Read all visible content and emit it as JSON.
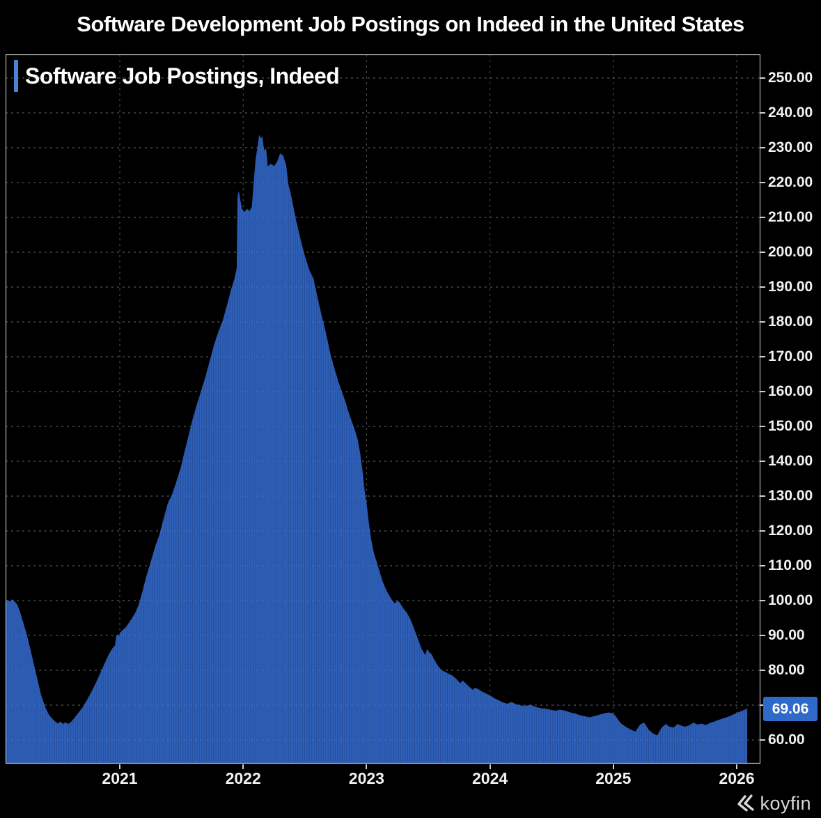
{
  "page": {
    "title": "Software Development Job Postings on Indeed in the United States"
  },
  "legend": {
    "label": "Software Job Postings, Indeed"
  },
  "badge": {
    "label": "69.06"
  },
  "brand": {
    "name": "koyfin"
  },
  "colors": {
    "background": "#000000",
    "bar_fill": "#2E5FB7",
    "bar_gap": "#234C99",
    "accent_bar": "#4D82DB",
    "badge_bg": "#2F6AC8",
    "grid": "#565656",
    "grid_overlay": "#FFFFFF",
    "frame": "#C7C7C7",
    "text": "#F2F2F2",
    "brand_gray": "#D8D8D8"
  },
  "chart_data": {
    "type": "area",
    "title": "Software Job Postings, Indeed",
    "xlabel": "",
    "ylabel": "",
    "legend_position": "top-left",
    "grid": true,
    "x_axis": {
      "range": [
        2020.06,
        2026.17
      ],
      "ticks": [
        2021,
        2022,
        2023,
        2024,
        2025,
        2026
      ],
      "tick_labels": [
        "2021",
        "2022",
        "2023",
        "2024",
        "2025",
        "2026"
      ]
    },
    "y_axis": {
      "range": [
        53,
        256.8
      ],
      "tick_step": 10,
      "gridline_values": [
        60,
        70,
        80,
        90,
        100,
        110,
        120,
        130,
        140,
        150,
        160,
        170,
        180,
        190,
        200,
        210,
        220,
        230,
        240,
        250
      ],
      "labels": [
        {
          "value": 250,
          "label": "250.00"
        },
        {
          "value": 240,
          "label": "240.00"
        },
        {
          "value": 230,
          "label": "230.00"
        },
        {
          "value": 220,
          "label": "220.00"
        },
        {
          "value": 210,
          "label": "210.00"
        },
        {
          "value": 200,
          "label": "200.00"
        },
        {
          "value": 190,
          "label": "190.00"
        },
        {
          "value": 180,
          "label": "180.00"
        },
        {
          "value": 170,
          "label": "170.00"
        },
        {
          "value": 160,
          "label": "160.00"
        },
        {
          "value": 150,
          "label": "150.00"
        },
        {
          "value": 140,
          "label": "140.00"
        },
        {
          "value": 130,
          "label": "130.00"
        },
        {
          "value": 120,
          "label": "120.00"
        },
        {
          "value": 110,
          "label": "110.00"
        },
        {
          "value": 100,
          "label": "100.00"
        },
        {
          "value": 90,
          "label": "90.00"
        },
        {
          "value": 80,
          "label": "80.00"
        },
        {
          "value": 60,
          "label": "60.00"
        }
      ]
    },
    "last_value": 69.06,
    "series": [
      {
        "name": "Software Job Postings, Indeed",
        "points": [
          [
            2020.075,
            99.5
          ],
          [
            2020.09,
            100.2
          ],
          [
            2020.11,
            99.8
          ],
          [
            2020.13,
            100.4
          ],
          [
            2020.15,
            99.7
          ],
          [
            2020.17,
            98.8
          ],
          [
            2020.19,
            97.0
          ],
          [
            2020.215,
            94.0
          ],
          [
            2020.245,
            90.5
          ],
          [
            2020.275,
            86.2
          ],
          [
            2020.305,
            81.6
          ],
          [
            2020.335,
            77.0
          ],
          [
            2020.365,
            72.6
          ],
          [
            2020.395,
            69.5
          ],
          [
            2020.425,
            67.3
          ],
          [
            2020.455,
            66.0
          ],
          [
            2020.48,
            65.2
          ],
          [
            2020.5,
            64.7
          ],
          [
            2020.52,
            65.3
          ],
          [
            2020.54,
            64.6
          ],
          [
            2020.56,
            65.1
          ],
          [
            2020.58,
            64.6
          ],
          [
            2020.6,
            65.0
          ],
          [
            2020.63,
            66.2
          ],
          [
            2020.66,
            67.6
          ],
          [
            2020.7,
            69.4
          ],
          [
            2020.735,
            71.5
          ],
          [
            2020.77,
            73.8
          ],
          [
            2020.805,
            76.3
          ],
          [
            2020.84,
            79.0
          ],
          [
            2020.875,
            81.8
          ],
          [
            2020.91,
            84.5
          ],
          [
            2020.94,
            86.3
          ],
          [
            2020.962,
            87.2
          ],
          [
            2020.972,
            89.9
          ],
          [
            2020.985,
            90.4
          ],
          [
            2020.993,
            89.7
          ],
          [
            2021.0,
            90.7
          ],
          [
            2021.025,
            91.6
          ],
          [
            2021.05,
            92.4
          ],
          [
            2021.075,
            93.7
          ],
          [
            2021.1,
            95.0
          ],
          [
            2021.125,
            96.5
          ],
          [
            2021.155,
            99.0
          ],
          [
            2021.185,
            102.8
          ],
          [
            2021.215,
            107.0
          ],
          [
            2021.25,
            111.0
          ],
          [
            2021.285,
            115.3
          ],
          [
            2021.32,
            118.8
          ],
          [
            2021.355,
            123.5
          ],
          [
            2021.39,
            128.0
          ],
          [
            2021.425,
            130.6
          ],
          [
            2021.46,
            134.3
          ],
          [
            2021.495,
            138.3
          ],
          [
            2021.525,
            142.8
          ],
          [
            2021.555,
            147.0
          ],
          [
            2021.59,
            152.0
          ],
          [
            2021.625,
            156.4
          ],
          [
            2021.66,
            160.3
          ],
          [
            2021.695,
            164.4
          ],
          [
            2021.73,
            169.0
          ],
          [
            2021.765,
            173.6
          ],
          [
            2021.8,
            177.3
          ],
          [
            2021.835,
            180.5
          ],
          [
            2021.87,
            185.0
          ],
          [
            2021.9,
            189.0
          ],
          [
            2021.93,
            192.5
          ],
          [
            2021.948,
            195.5
          ],
          [
            2021.955,
            216.0
          ],
          [
            2021.965,
            217.6
          ],
          [
            2021.978,
            214.8
          ],
          [
            2021.99,
            212.5
          ],
          [
            2022.01,
            211.5
          ],
          [
            2022.03,
            212.5
          ],
          [
            2022.05,
            211.8
          ],
          [
            2022.07,
            213.0
          ],
          [
            2022.085,
            220.0
          ],
          [
            2022.1,
            226.4
          ],
          [
            2022.115,
            230.0
          ],
          [
            2022.13,
            233.7
          ],
          [
            2022.145,
            232.7
          ],
          [
            2022.155,
            233.4
          ],
          [
            2022.17,
            229.2
          ],
          [
            2022.185,
            229.8
          ],
          [
            2022.2,
            224.7
          ],
          [
            2022.225,
            225.4
          ],
          [
            2022.25,
            224.7
          ],
          [
            2022.275,
            226.0
          ],
          [
            2022.3,
            228.4
          ],
          [
            2022.325,
            227.7
          ],
          [
            2022.35,
            224.7
          ],
          [
            2022.365,
            219.7
          ],
          [
            2022.385,
            217.0
          ],
          [
            2022.43,
            209.0
          ],
          [
            2022.47,
            203.0
          ],
          [
            2022.5,
            199.0
          ],
          [
            2022.535,
            195.0
          ],
          [
            2022.57,
            192.4
          ],
          [
            2022.6,
            187.5
          ],
          [
            2022.635,
            182.0
          ],
          [
            2022.67,
            177.0
          ],
          [
            2022.71,
            170.4
          ],
          [
            2022.745,
            166.0
          ],
          [
            2022.775,
            162.5
          ],
          [
            2022.805,
            159.5
          ],
          [
            2022.83,
            157.0
          ],
          [
            2022.851,
            154.4
          ],
          [
            2022.88,
            151.5
          ],
          [
            2022.905,
            149.0
          ],
          [
            2022.93,
            146.0
          ],
          [
            2022.95,
            142.0
          ],
          [
            2022.97,
            136.5
          ],
          [
            2022.985,
            131.5
          ],
          [
            2023.0,
            128.0
          ],
          [
            2023.02,
            122.0
          ],
          [
            2023.04,
            117.0
          ],
          [
            2023.06,
            113.6
          ],
          [
            2023.08,
            111.4
          ],
          [
            2023.1,
            109.0
          ],
          [
            2023.13,
            105.6
          ],
          [
            2023.16,
            103.0
          ],
          [
            2023.185,
            101.4
          ],
          [
            2023.21,
            100.0
          ],
          [
            2023.23,
            99.2
          ],
          [
            2023.25,
            100.0
          ],
          [
            2023.27,
            99.4
          ],
          [
            2023.295,
            97.9
          ],
          [
            2023.325,
            96.6
          ],
          [
            2023.355,
            94.7
          ],
          [
            2023.385,
            92.0
          ],
          [
            2023.415,
            89.2
          ],
          [
            2023.445,
            86.2
          ],
          [
            2023.475,
            84.4
          ],
          [
            2023.49,
            86.1
          ],
          [
            2023.505,
            85.3
          ],
          [
            2023.525,
            84.7
          ],
          [
            2023.55,
            83.0
          ],
          [
            2023.58,
            81.2
          ],
          [
            2023.61,
            80.0
          ],
          [
            2023.64,
            79.5
          ],
          [
            2023.67,
            78.9
          ],
          [
            2023.7,
            78.4
          ],
          [
            2023.73,
            77.4
          ],
          [
            2023.76,
            76.3
          ],
          [
            2023.78,
            77.1
          ],
          [
            2023.81,
            76.0
          ],
          [
            2023.835,
            75.2
          ],
          [
            2023.86,
            74.4
          ],
          [
            2023.88,
            75.0
          ],
          [
            2023.905,
            74.6
          ],
          [
            2023.935,
            73.9
          ],
          [
            2023.965,
            73.4
          ],
          [
            2024.0,
            72.8
          ],
          [
            2024.035,
            72.0
          ],
          [
            2024.07,
            71.4
          ],
          [
            2024.105,
            70.8
          ],
          [
            2024.14,
            70.4
          ],
          [
            2024.175,
            70.9
          ],
          [
            2024.21,
            70.3
          ],
          [
            2024.25,
            69.9
          ],
          [
            2024.29,
            69.8
          ],
          [
            2024.33,
            70.1
          ],
          [
            2024.37,
            69.5
          ],
          [
            2024.41,
            69.1
          ],
          [
            2024.45,
            69.0
          ],
          [
            2024.49,
            68.7
          ],
          [
            2024.53,
            68.4
          ],
          [
            2024.57,
            68.7
          ],
          [
            2024.61,
            68.4
          ],
          [
            2024.65,
            67.9
          ],
          [
            2024.69,
            67.6
          ],
          [
            2024.73,
            67.1
          ],
          [
            2024.77,
            66.8
          ],
          [
            2024.81,
            66.5
          ],
          [
            2024.85,
            66.9
          ],
          [
            2024.89,
            67.3
          ],
          [
            2024.93,
            67.7
          ],
          [
            2024.965,
            67.9
          ],
          [
            2025.0,
            67.6
          ],
          [
            2025.03,
            66.3
          ],
          [
            2025.06,
            64.8
          ],
          [
            2025.1,
            63.8
          ],
          [
            2025.14,
            63.0
          ],
          [
            2025.18,
            62.4
          ],
          [
            2025.215,
            64.4
          ],
          [
            2025.25,
            65.0
          ],
          [
            2025.285,
            63.0
          ],
          [
            2025.32,
            61.9
          ],
          [
            2025.355,
            61.3
          ],
          [
            2025.39,
            63.5
          ],
          [
            2025.425,
            64.6
          ],
          [
            2025.455,
            63.8
          ],
          [
            2025.49,
            63.6
          ],
          [
            2025.52,
            64.6
          ],
          [
            2025.55,
            64.1
          ],
          [
            2025.58,
            63.8
          ],
          [
            2025.615,
            64.2
          ],
          [
            2025.65,
            65.0
          ],
          [
            2025.68,
            64.4
          ],
          [
            2025.715,
            64.7
          ],
          [
            2025.75,
            64.3
          ],
          [
            2025.785,
            64.9
          ],
          [
            2025.82,
            65.3
          ],
          [
            2025.855,
            65.8
          ],
          [
            2025.89,
            66.2
          ],
          [
            2025.925,
            66.6
          ],
          [
            2025.96,
            67.1
          ],
          [
            2025.995,
            67.7
          ],
          [
            2026.03,
            68.2
          ],
          [
            2026.06,
            68.6
          ],
          [
            2026.085,
            69.06
          ]
        ]
      }
    ]
  }
}
